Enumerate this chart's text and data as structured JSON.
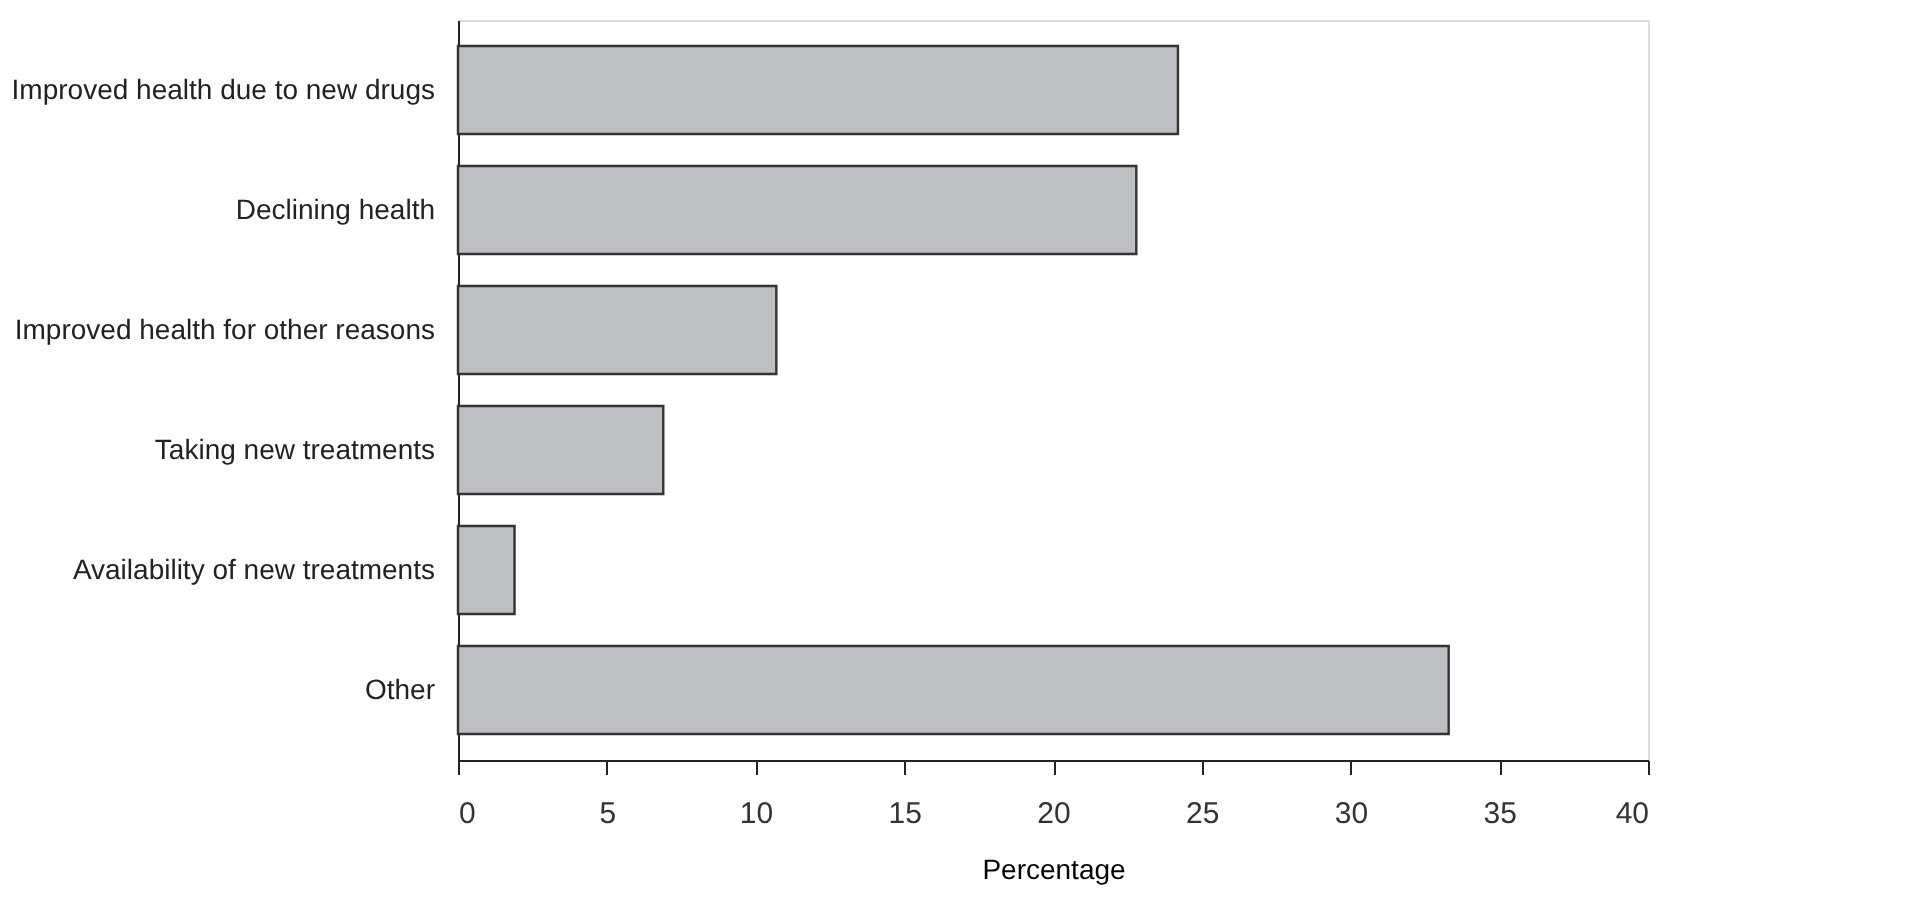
{
  "chart_data": {
    "type": "bar",
    "orientation": "horizontal",
    "xlabel": "Percentage",
    "categories": [
      "Improved health due to new drugs",
      "Declining health",
      "Improved health for other reasons",
      "Taking new treatments",
      "Availability of new treatments",
      "Other"
    ],
    "values": [
      24.2,
      22.8,
      10.7,
      6.9,
      1.9,
      33.3
    ],
    "color": "#bebfc3",
    "xlim": [
      0,
      40
    ],
    "xticks": [
      0,
      5,
      10,
      15,
      20,
      25,
      30,
      35,
      40
    ],
    "grid": false
  }
}
